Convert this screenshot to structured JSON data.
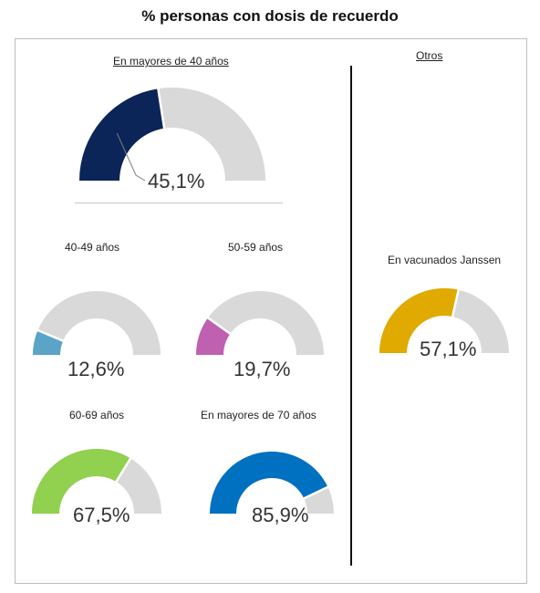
{
  "title": "% personas con dosis de recuerdo",
  "sections": {
    "left_header": "En mayores de 40 años",
    "right_header": "Otros"
  },
  "colors": {
    "track": "#d9d9d9",
    "main": "#0b2558",
    "g40_49": "#5aa4c8",
    "g50_59": "#c060b0",
    "g60_69": "#92d050",
    "g70": "#0070c0",
    "janssen": "#e0aa00"
  },
  "chart_data": [
    {
      "type": "gauge",
      "label": "En mayores de 40 años",
      "value": 45.1,
      "value_label": "45,1%",
      "color": "#0b2558"
    },
    {
      "type": "gauge",
      "label": "40-49 años",
      "value": 12.6,
      "value_label": "12,6%",
      "color": "#5aa4c8"
    },
    {
      "type": "gauge",
      "label": "50-59 años",
      "value": 19.7,
      "value_label": "19,7%",
      "color": "#c060b0"
    },
    {
      "type": "gauge",
      "label": "60-69 años",
      "value": 67.5,
      "value_label": "67,5%",
      "color": "#92d050"
    },
    {
      "type": "gauge",
      "label": "En mayores de 70 años",
      "value": 85.9,
      "value_label": "85,9%",
      "color": "#0070c0"
    },
    {
      "type": "gauge",
      "label": "En vacunados Janssen",
      "value": 57.1,
      "value_label": "57,1%",
      "color": "#e0aa00"
    }
  ]
}
